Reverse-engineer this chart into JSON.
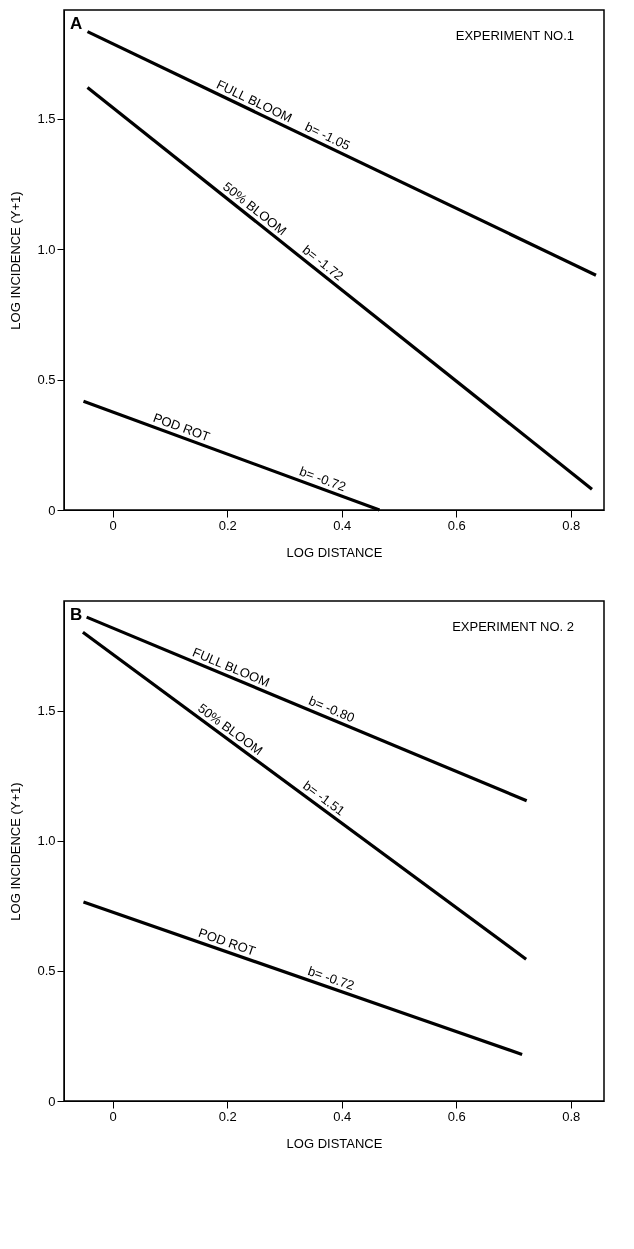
{
  "chart_data": [
    {
      "type": "line",
      "title": "A",
      "xlabel": "LOG DISTANCE",
      "ylabel": "LOG INCIDENCE (Y+1)",
      "xlim": [
        -0.085,
        0.858
      ],
      "ylim": [
        0,
        1.917
      ],
      "xticks": [
        0,
        0.2,
        0.4,
        0.6,
        0.8
      ],
      "yticks": [
        0,
        0.5,
        {
          "value": 1,
          "label": "1.0"
        },
        1.5
      ],
      "series": [
        {
          "name": "FULL BLOOM",
          "color": "#000000",
          "x": [
            -0.044,
            0.844
          ],
          "values": [
            1.834,
            0.9
          ]
        },
        {
          "name": "50% BLOOM",
          "color": "#000000",
          "x": [
            -0.044,
            0.837
          ],
          "values": [
            1.62,
            0.08
          ]
        },
        {
          "name": "POD ROT",
          "color": "#000000",
          "x": [
            -0.051,
            0.466
          ],
          "values": [
            0.417,
            0
          ]
        }
      ],
      "annotations": [
        "EXPERIMENT NO.1",
        {
          "text": "b= -1.05",
          "x": 0.368,
          "y": 1.401
        },
        {
          "text": "b= -1.72",
          "x": 0.357,
          "y": 0.919
        },
        {
          "text": "b= -0.72",
          "x": 0.361,
          "y": 0.085
        }
      ]
    },
    {
      "type": "line",
      "title": "B",
      "xlabel": "LOG DISTANCE",
      "ylabel": "LOG INCIDENCE (Y+1)",
      "xlim": [
        -0.085,
        0.858
      ],
      "ylim": [
        0,
        1.922
      ],
      "xticks": [
        0,
        0.2,
        0.4,
        0.6,
        0.8
      ],
      "yticks": [
        0,
        0.5,
        {
          "value": 1,
          "label": "1.0"
        },
        1.5
      ],
      "series": [
        {
          "name": "FULL BLOOM",
          "color": "#000000",
          "x": [
            -0.0455,
            0.723
          ],
          "values": [
            1.86,
            1.154
          ]
        },
        {
          "name": "50% BLOOM",
          "color": "#000000",
          "x": [
            -0.052,
            0.722
          ],
          "values": [
            1.802,
            0.545
          ]
        },
        {
          "name": "POD ROT",
          "color": "#000000",
          "x": [
            -0.051,
            0.715
          ],
          "values": [
            0.765,
            0.179
          ]
        }
      ],
      "annotations": [
        "EXPERIMENT NO. 2",
        {
          "text": "b= -0.80",
          "x": 0.376,
          "y": 1.473
        },
        {
          "text": "b= -1.51",
          "x": 0.359,
          "y": 1.135
        },
        {
          "text": "b= -0.72",
          "x": 0.376,
          "y": 0.438
        }
      ]
    }
  ]
}
